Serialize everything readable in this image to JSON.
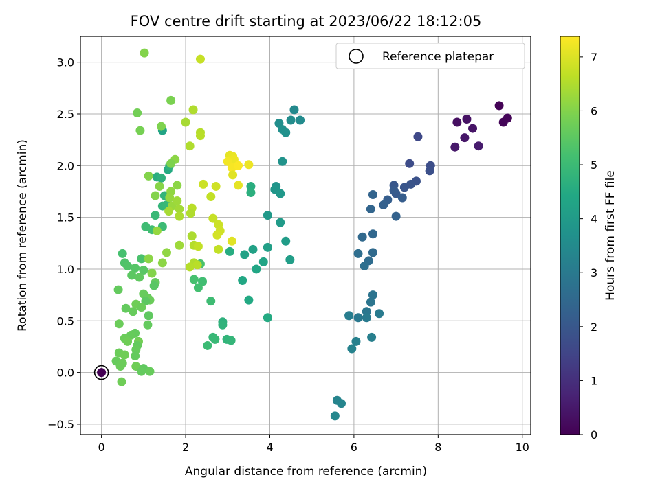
{
  "chart_data": {
    "type": "scatter",
    "title": "FOV centre drift starting at 2023/06/22 18:12:05",
    "xlabel": "Angular distance from reference (arcmin)",
    "ylabel": "Rotation from reference (arcmin)",
    "xlim": [
      -0.5,
      10.2
    ],
    "ylim": [
      -0.6,
      3.25
    ],
    "xticks": [
      0,
      2,
      4,
      6,
      8,
      10
    ],
    "yticks": [
      -0.5,
      0.0,
      0.5,
      1.0,
      1.5,
      2.0,
      2.5,
      3.0
    ],
    "xtick_labels": [
      "0",
      "2",
      "4",
      "6",
      "8",
      "10"
    ],
    "ytick_labels": [
      "−0.5",
      "0.0",
      "0.5",
      "1.0",
      "1.5",
      "2.0",
      "2.5",
      "3.0"
    ],
    "grid": true,
    "legend": {
      "placement": "upper right",
      "entries": [
        "Reference platepar"
      ]
    },
    "reference_point": {
      "x": 0,
      "y": 0,
      "label": "Reference platepar"
    },
    "colorbar": {
      "label": "Hours from first FF file",
      "colormap": "viridis",
      "range": [
        0,
        7.38
      ],
      "ticks": [
        0,
        1,
        2,
        3,
        4,
        5,
        6,
        7
      ],
      "tick_labels": [
        "0",
        "1",
        "2",
        "3",
        "4",
        "5",
        "6",
        "7"
      ]
    },
    "points": [
      [
        9.45,
        2.58,
        0.05
      ],
      [
        9.55,
        2.42,
        0.08
      ],
      [
        9.65,
        2.46,
        0.1
      ],
      [
        8.45,
        2.42,
        0.3
      ],
      [
        8.68,
        2.45,
        0.35
      ],
      [
        8.82,
        2.36,
        0.4
      ],
      [
        8.63,
        2.27,
        0.45
      ],
      [
        8.4,
        2.18,
        0.5
      ],
      [
        8.96,
        2.19,
        0.55
      ],
      [
        7.52,
        2.28,
        1.6
      ],
      [
        7.32,
        2.02,
        1.7
      ],
      [
        7.82,
        2.0,
        1.75
      ],
      [
        7.8,
        1.95,
        1.8
      ],
      [
        7.48,
        1.85,
        1.85
      ],
      [
        7.35,
        1.82,
        1.9
      ],
      [
        7.2,
        1.79,
        1.95
      ],
      [
        6.95,
        1.81,
        2.0
      ],
      [
        7.0,
        1.73,
        2.05
      ],
      [
        6.95,
        1.76,
        2.1
      ],
      [
        7.15,
        1.69,
        2.15
      ],
      [
        6.8,
        1.67,
        2.2
      ],
      [
        6.7,
        1.62,
        2.25
      ],
      [
        7.0,
        1.51,
        2.3
      ],
      [
        6.45,
        1.72,
        2.35
      ],
      [
        6.4,
        1.58,
        2.4
      ],
      [
        6.45,
        1.34,
        2.45
      ],
      [
        6.2,
        1.31,
        2.5
      ],
      [
        6.45,
        1.16,
        2.55
      ],
      [
        6.35,
        1.08,
        2.6
      ],
      [
        6.1,
        1.15,
        2.65
      ],
      [
        6.25,
        1.03,
        2.7
      ],
      [
        6.45,
        0.75,
        2.8
      ],
      [
        6.4,
        0.68,
        2.85
      ],
      [
        6.3,
        0.59,
        2.9
      ],
      [
        6.1,
        0.53,
        2.95
      ],
      [
        6.3,
        0.53,
        3.0
      ],
      [
        6.6,
        0.57,
        3.05
      ],
      [
        5.88,
        0.55,
        3.1
      ],
      [
        6.42,
        0.34,
        3.15
      ],
      [
        6.05,
        0.3,
        3.2
      ],
      [
        5.95,
        0.23,
        3.25
      ],
      [
        5.6,
        -0.27,
        3.3
      ],
      [
        5.7,
        -0.3,
        3.35
      ],
      [
        5.55,
        -0.42,
        3.4
      ],
      [
        4.58,
        2.54,
        3.45
      ],
      [
        4.72,
        2.44,
        3.5
      ],
      [
        4.5,
        2.44,
        3.55
      ],
      [
        4.22,
        2.41,
        3.6
      ],
      [
        4.3,
        2.35,
        3.65
      ],
      [
        4.38,
        2.32,
        3.7
      ],
      [
        4.3,
        2.04,
        3.75
      ],
      [
        4.15,
        1.8,
        3.8
      ],
      [
        4.12,
        1.77,
        3.85
      ],
      [
        4.25,
        1.73,
        3.9
      ],
      [
        3.95,
        1.52,
        3.95
      ],
      [
        4.25,
        1.45,
        4.0
      ],
      [
        4.38,
        1.27,
        4.05
      ],
      [
        4.48,
        1.09,
        4.1
      ],
      [
        3.95,
        1.21,
        4.15
      ],
      [
        3.6,
        1.19,
        4.2
      ],
      [
        3.4,
        1.14,
        4.25
      ],
      [
        3.85,
        1.07,
        4.3
      ],
      [
        3.68,
        1.0,
        4.35
      ],
      [
        3.35,
        0.89,
        4.4
      ],
      [
        3.5,
        0.7,
        4.45
      ],
      [
        3.95,
        0.53,
        4.5
      ],
      [
        3.05,
        1.17,
        4.55
      ],
      [
        3.55,
        1.8,
        4.6
      ],
      [
        3.55,
        1.74,
        4.65
      ],
      [
        2.88,
        0.49,
        4.7
      ],
      [
        2.88,
        0.46,
        4.75
      ],
      [
        2.98,
        0.32,
        4.8
      ],
      [
        3.08,
        0.31,
        4.85
      ],
      [
        2.65,
        0.34,
        4.9
      ],
      [
        2.7,
        0.32,
        4.95
      ],
      [
        2.52,
        0.26,
        5.0
      ],
      [
        2.6,
        0.69,
        5.05
      ],
      [
        2.4,
        0.88,
        5.1
      ],
      [
        2.3,
        0.82,
        5.15
      ],
      [
        2.2,
        0.9,
        5.2
      ],
      [
        2.35,
        1.05,
        5.25
      ],
      [
        1.45,
        2.34,
        4.3
      ],
      [
        1.58,
        1.96,
        4.5
      ],
      [
        1.32,
        1.89,
        4.6
      ],
      [
        1.42,
        1.88,
        4.7
      ],
      [
        1.62,
        2.0,
        4.75
      ],
      [
        1.5,
        1.71,
        4.8
      ],
      [
        1.45,
        1.61,
        4.85
      ],
      [
        1.55,
        1.62,
        4.9
      ],
      [
        1.28,
        1.52,
        4.95
      ],
      [
        1.45,
        1.41,
        5.0
      ],
      [
        1.05,
        1.41,
        5.05
      ],
      [
        1.2,
        1.38,
        5.1
      ],
      [
        0.5,
        1.15,
        5.2
      ],
      [
        0.95,
        1.1,
        5.25
      ],
      [
        0.55,
        1.06,
        5.3
      ],
      [
        0.62,
        1.03,
        5.35
      ],
      [
        0.8,
        1.01,
        5.4
      ],
      [
        1.0,
        0.99,
        5.45
      ],
      [
        0.72,
        0.94,
        5.5
      ],
      [
        0.9,
        0.92,
        5.55
      ],
      [
        1.28,
        0.87,
        5.6
      ],
      [
        1.25,
        0.84,
        5.45
      ],
      [
        0.4,
        0.8,
        5.6
      ],
      [
        1.0,
        0.76,
        5.65
      ],
      [
        1.1,
        0.72,
        5.65
      ],
      [
        1.15,
        0.7,
        5.7
      ],
      [
        1.05,
        0.69,
        5.5
      ],
      [
        0.58,
        0.62,
        5.6
      ],
      [
        0.75,
        0.59,
        5.65
      ],
      [
        0.82,
        0.66,
        5.75
      ],
      [
        0.95,
        0.63,
        5.7
      ],
      [
        1.12,
        0.55,
        5.55
      ],
      [
        1.1,
        0.46,
        5.6
      ],
      [
        0.42,
        0.47,
        5.7
      ],
      [
        0.8,
        0.38,
        5.6
      ],
      [
        0.7,
        0.36,
        5.65
      ],
      [
        0.55,
        0.33,
        5.7
      ],
      [
        0.62,
        0.3,
        5.75
      ],
      [
        0.88,
        0.3,
        5.8
      ],
      [
        0.85,
        0.26,
        5.6
      ],
      [
        0.82,
        0.22,
        5.65
      ],
      [
        0.42,
        0.19,
        5.7
      ],
      [
        0.55,
        0.17,
        5.75
      ],
      [
        0.8,
        0.16,
        5.6
      ],
      [
        0.35,
        0.11,
        5.65
      ],
      [
        0.5,
        0.09,
        5.7
      ],
      [
        0.82,
        0.06,
        5.75
      ],
      [
        1.0,
        0.04,
        5.55
      ],
      [
        0.95,
        0.01,
        5.6
      ],
      [
        1.15,
        0.01,
        5.65
      ],
      [
        0.45,
        0.06,
        5.7
      ],
      [
        0.48,
        -0.09,
        5.75
      ],
      [
        1.02,
        3.09,
        6.0
      ],
      [
        0.85,
        2.51,
        5.8
      ],
      [
        0.92,
        2.34,
        5.85
      ],
      [
        1.65,
        2.63,
        5.9
      ],
      [
        1.42,
        2.38,
        5.95
      ],
      [
        1.12,
        1.9,
        6.0
      ],
      [
        1.38,
        1.8,
        6.05
      ],
      [
        1.8,
        1.81,
        6.1
      ],
      [
        1.65,
        1.75,
        6.15
      ],
      [
        1.62,
        1.69,
        6.2
      ],
      [
        1.68,
        1.61,
        6.25
      ],
      [
        1.8,
        1.66,
        6.3
      ],
      [
        1.85,
        1.58,
        6.35
      ],
      [
        1.6,
        1.56,
        6.4
      ],
      [
        1.85,
        1.51,
        6.45
      ],
      [
        1.28,
        1.71,
        6.0
      ],
      [
        1.12,
        1.1,
        6.1
      ],
      [
        1.2,
        0.96,
        6.0
      ],
      [
        1.45,
        1.06,
        6.1
      ],
      [
        1.55,
        1.16,
        6.15
      ],
      [
        1.32,
        1.37,
        6.2
      ],
      [
        1.85,
        1.23,
        6.3
      ],
      [
        1.75,
        2.06,
        6.1
      ],
      [
        1.65,
        2.02,
        5.95
      ],
      [
        2.0,
        2.42,
        6.4
      ],
      [
        2.18,
        2.54,
        6.5
      ],
      [
        2.35,
        2.32,
        6.55
      ],
      [
        2.35,
        2.29,
        6.6
      ],
      [
        2.1,
        2.19,
        6.5
      ],
      [
        2.15,
        1.59,
        6.6
      ],
      [
        2.12,
        1.54,
        6.5
      ],
      [
        2.2,
        1.23,
        6.55
      ],
      [
        2.3,
        1.22,
        6.7
      ],
      [
        2.2,
        1.06,
        6.5
      ],
      [
        2.28,
        1.04,
        6.6
      ],
      [
        2.1,
        1.02,
        6.55
      ],
      [
        2.15,
        1.32,
        6.45
      ],
      [
        2.6,
        1.7,
        6.7
      ],
      [
        2.65,
        1.49,
        6.75
      ],
      [
        2.78,
        1.43,
        6.8
      ],
      [
        2.82,
        1.37,
        6.85
      ],
      [
        2.75,
        1.33,
        6.9
      ],
      [
        2.78,
        1.19,
        6.7
      ],
      [
        2.42,
        1.82,
        6.8
      ],
      [
        2.72,
        1.8,
        6.85
      ],
      [
        2.35,
        3.03,
        6.75
      ],
      [
        3.1,
        1.27,
        7.05
      ],
      [
        3.05,
        2.1,
        7.1
      ],
      [
        3.12,
        2.09,
        7.15
      ],
      [
        3.15,
        2.06,
        7.2
      ],
      [
        3.0,
        2.04,
        7.25
      ],
      [
        3.1,
        1.98,
        7.3
      ],
      [
        3.25,
        2.0,
        7.35
      ],
      [
        3.5,
        2.01,
        7.2
      ],
      [
        3.12,
        1.91,
        7.05
      ],
      [
        3.25,
        1.81,
        7.1
      ]
    ]
  }
}
